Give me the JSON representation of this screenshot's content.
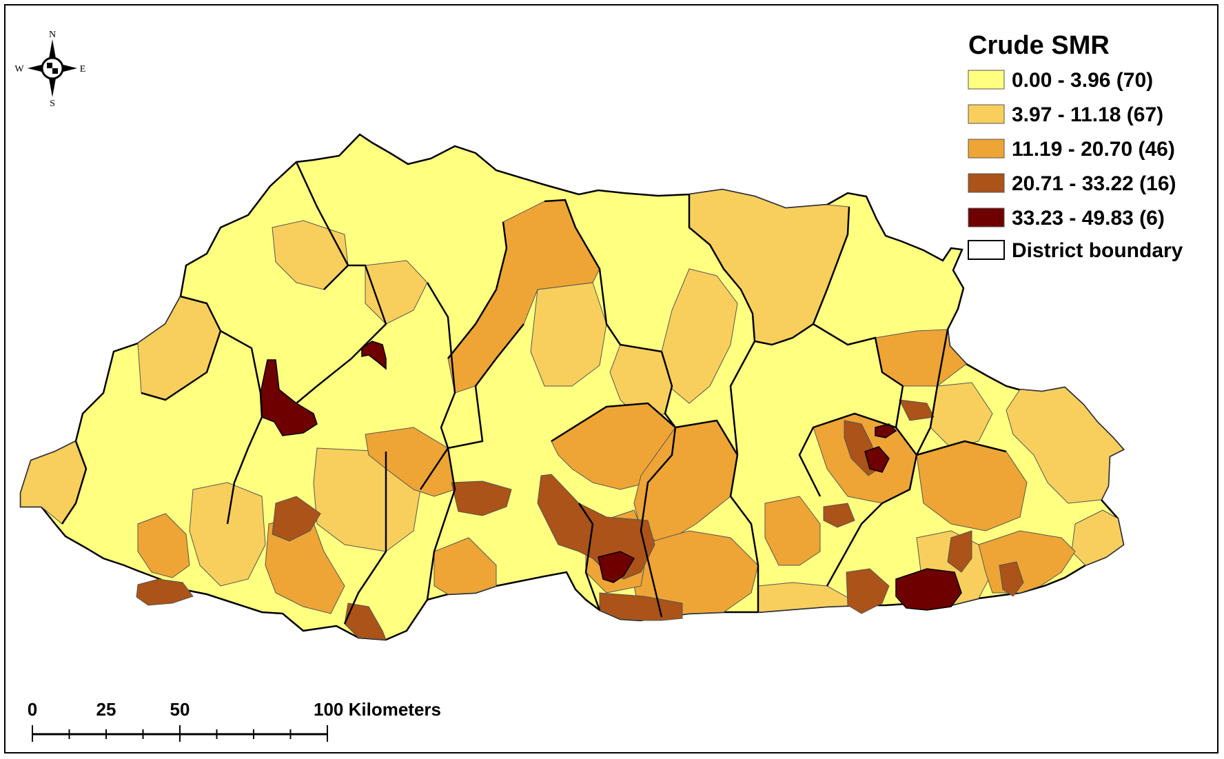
{
  "legend": {
    "title": "Crude SMR",
    "classes": [
      {
        "label": "0.00 - 3.96 (70)",
        "color": "#ffff80"
      },
      {
        "label": "3.97 - 11.18 (67)",
        "color": "#f8cf5c"
      },
      {
        "label": "11.19 - 20.70 (46)",
        "color": "#eea535"
      },
      {
        "label": "20.71 - 33.22 (16)",
        "color": "#ab5318"
      },
      {
        "label": "33.23 - 49.83 (6)",
        "color": "#6e0000"
      }
    ],
    "boundary_label": "District boundary"
  },
  "compass": {
    "n": "N",
    "s": "S",
    "e": "E",
    "w": "W"
  },
  "scale_bar": {
    "labels": [
      "0",
      "25",
      "50",
      "100 Kilometers"
    ]
  }
}
